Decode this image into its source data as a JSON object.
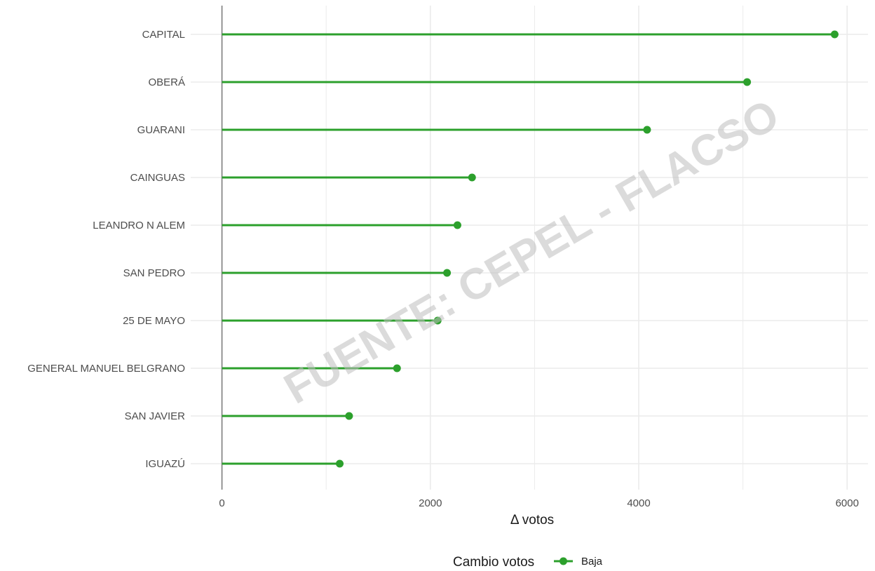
{
  "chart_data": {
    "type": "lollipop",
    "categories": [
      "CAPITAL",
      "OBERÁ",
      "GUARANI",
      "CAINGUAS",
      "LEANDRO N ALEM",
      "SAN PEDRO",
      "25 DE MAYO",
      "GENERAL MANUEL BELGRANO",
      "SAN JAVIER",
      "IGUAZÚ"
    ],
    "series": [
      {
        "name": "Baja",
        "values": [
          5880,
          5040,
          4080,
          2400,
          2260,
          2160,
          2070,
          1680,
          1220,
          1130
        ]
      }
    ],
    "xlabel": "Δ votos",
    "ylabel": "",
    "xlim": [
      -300,
      6200
    ],
    "xticks": [
      0,
      2000,
      4000,
      6000
    ],
    "legend": {
      "title": "Cambio votos",
      "placement": "bottom",
      "entries": [
        "Baja"
      ]
    },
    "watermark": "FUENTE: CEPEL - FLACSO",
    "grid": true
  },
  "colors": {
    "series": "#2ca02c",
    "grid": "#ebebeb",
    "zero_line": "#7f7f7f",
    "watermark": "#bdbdbd"
  }
}
